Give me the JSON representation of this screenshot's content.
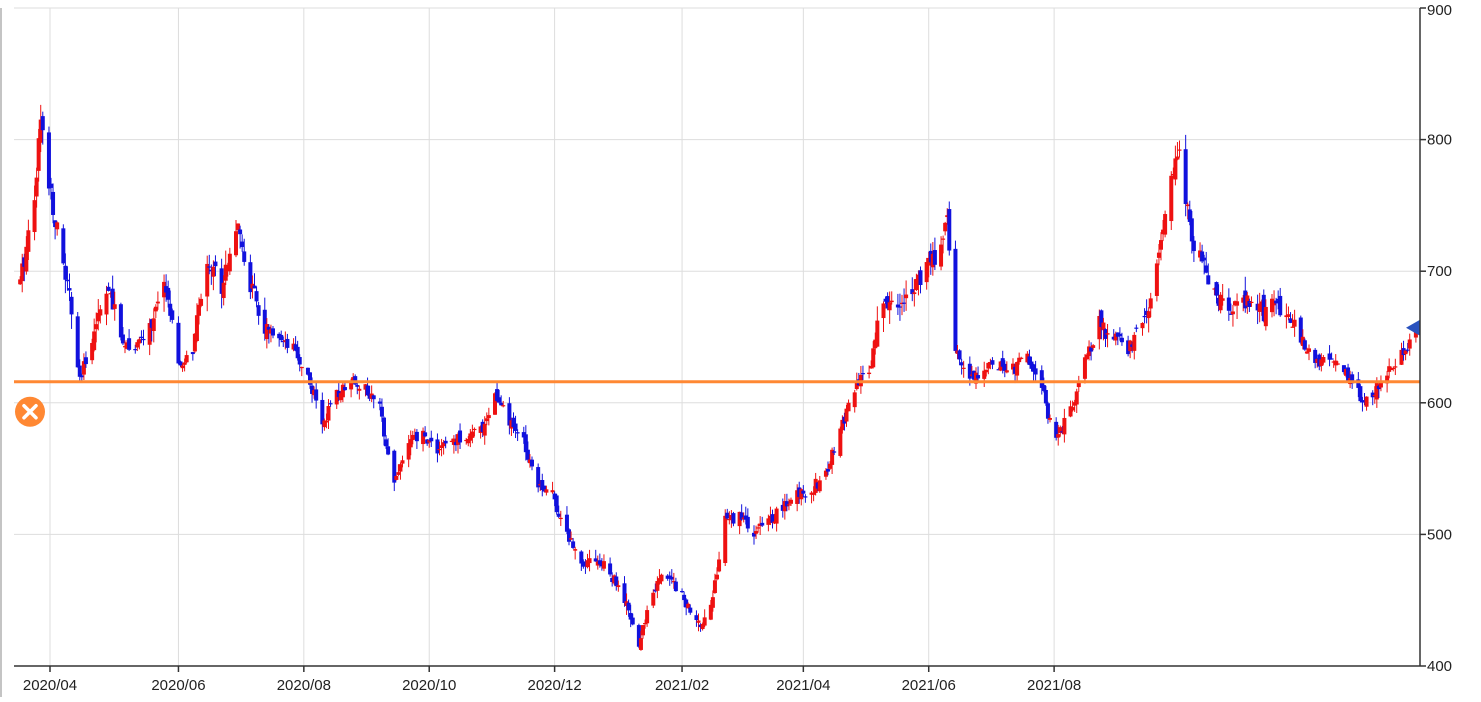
{
  "chart_data": {
    "type": "candlestick",
    "ylim": [
      400,
      900
    ],
    "y_ticks": [
      "900",
      "800",
      "700",
      "600",
      "500",
      "400"
    ],
    "x_ticks": [
      "2020/04",
      "2020/06",
      "2020/08",
      "2020/10",
      "2020/12",
      "2021/02",
      "2021/04",
      "2021/06",
      "2021/08"
    ],
    "grid": true,
    "up_color": "#ee1111",
    "down_color": "#1111dd",
    "horizontal_line": {
      "value": 616,
      "color": "#ff8833"
    },
    "last_price_marker": {
      "value": 657,
      "color": "#2a52be"
    },
    "series_anchors": [
      [
        "2020-03-16",
        690
      ],
      [
        "2020-03-23",
        760
      ],
      [
        "2020-03-26",
        815
      ],
      [
        "2020-03-30",
        770
      ],
      [
        "2020-04-03",
        730
      ],
      [
        "2020-04-09",
        680
      ],
      [
        "2020-04-14",
        615
      ],
      [
        "2020-04-20",
        650
      ],
      [
        "2020-04-27",
        690
      ],
      [
        "2020-05-04",
        650
      ],
      [
        "2020-05-11",
        640
      ],
      [
        "2020-05-19",
        660
      ],
      [
        "2020-05-26",
        690
      ],
      [
        "2020-06-01",
        625
      ],
      [
        "2020-06-08",
        640
      ],
      [
        "2020-06-15",
        710
      ],
      [
        "2020-06-22",
        690
      ],
      [
        "2020-06-29",
        735
      ],
      [
        "2020-07-06",
        690
      ],
      [
        "2020-07-13",
        655
      ],
      [
        "2020-07-20",
        645
      ],
      [
        "2020-07-27",
        640
      ],
      [
        "2020-08-03",
        620
      ],
      [
        "2020-08-10",
        585
      ],
      [
        "2020-08-17",
        605
      ],
      [
        "2020-08-24",
        620
      ],
      [
        "2020-08-31",
        610
      ],
      [
        "2020-09-07",
        595
      ],
      [
        "2020-09-14",
        540
      ],
      [
        "2020-09-21",
        570
      ],
      [
        "2020-09-28",
        575
      ],
      [
        "2020-10-05",
        565
      ],
      [
        "2020-10-12",
        570
      ],
      [
        "2020-10-19",
        575
      ],
      [
        "2020-10-26",
        578
      ],
      [
        "2020-11-02",
        605
      ],
      [
        "2020-11-09",
        585
      ],
      [
        "2020-11-16",
        570
      ],
      [
        "2020-11-23",
        540
      ],
      [
        "2020-11-30",
        530
      ],
      [
        "2020-12-07",
        500
      ],
      [
        "2020-12-14",
        480
      ],
      [
        "2020-12-21",
        482
      ],
      [
        "2020-12-28",
        470
      ],
      [
        "2021-01-04",
        450
      ],
      [
        "2021-01-11",
        415
      ],
      [
        "2021-01-18",
        460
      ],
      [
        "2021-01-25",
        470
      ],
      [
        "2021-02-01",
        455
      ],
      [
        "2021-02-08",
        430
      ],
      [
        "2021-02-15",
        445
      ],
      [
        "2021-02-22",
        510
      ],
      [
        "2021-03-01",
        515
      ],
      [
        "2021-03-08",
        500
      ],
      [
        "2021-03-15",
        510
      ],
      [
        "2021-03-22",
        520
      ],
      [
        "2021-03-29",
        530
      ],
      [
        "2021-04-05",
        535
      ],
      [
        "2021-04-12",
        545
      ],
      [
        "2021-04-19",
        580
      ],
      [
        "2021-04-26",
        610
      ],
      [
        "2021-05-03",
        625
      ],
      [
        "2021-05-10",
        680
      ],
      [
        "2021-05-17",
        670
      ],
      [
        "2021-05-24",
        690
      ],
      [
        "2021-05-31",
        700
      ],
      [
        "2021-06-07",
        720
      ],
      [
        "2021-06-10",
        745
      ],
      [
        "2021-06-14",
        640
      ],
      [
        "2021-06-21",
        620
      ],
      [
        "2021-06-28",
        625
      ],
      [
        "2021-07-05",
        630
      ],
      [
        "2021-07-12",
        625
      ],
      [
        "2021-07-19",
        635
      ],
      [
        "2021-07-26",
        610
      ],
      [
        "2021-08-02",
        570
      ],
      [
        "2021-08-09",
        595
      ],
      [
        "2021-08-16",
        630
      ],
      [
        "2021-08-23",
        660
      ],
      [
        "2021-08-30",
        650
      ],
      [
        "2021-09-06",
        640
      ],
      [
        "2021-09-13",
        660
      ],
      [
        "2021-09-20",
        700
      ],
      [
        "2021-09-27",
        770
      ],
      [
        "2021-10-01",
        790
      ],
      [
        "2021-10-07",
        720
      ],
      [
        "2021-10-14",
        700
      ],
      [
        "2021-10-21",
        675
      ],
      [
        "2021-10-28",
        670
      ],
      [
        "2021-11-04",
        680
      ],
      [
        "2021-11-11",
        670
      ],
      [
        "2021-11-18",
        675
      ],
      [
        "2021-11-25",
        660
      ],
      [
        "2021-12-02",
        640
      ],
      [
        "2021-12-09",
        630
      ],
      [
        "2021-12-16",
        635
      ],
      [
        "2021-12-23",
        615
      ],
      [
        "2021-12-30",
        600
      ],
      [
        "2022-01-06",
        615
      ],
      [
        "2022-01-13",
        630
      ],
      [
        "2022-01-20",
        640
      ],
      [
        "2022-01-24",
        660
      ]
    ]
  }
}
